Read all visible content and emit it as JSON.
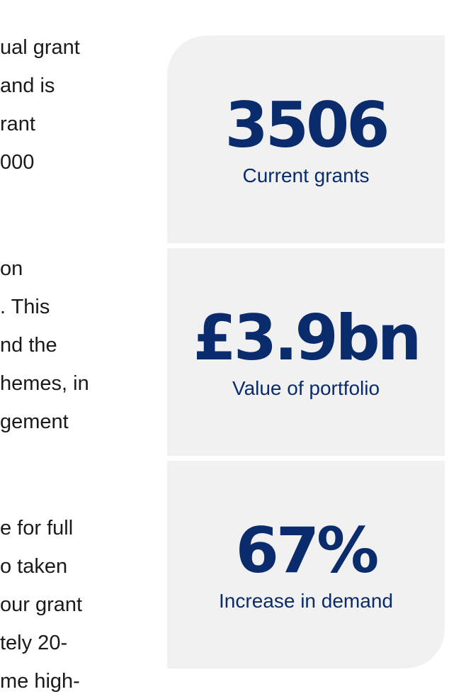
{
  "body_text": {
    "paragraph_1": [
      "ual grant",
      " and is",
      "rant",
      "000"
    ],
    "paragraph_2": [
      "on",
      ". This",
      "nd the",
      "hemes, in",
      "gement"
    ],
    "paragraph_3": [
      "e for full",
      "o taken",
      "our grant",
      "tely 20-",
      "me high-"
    ]
  },
  "stats": [
    {
      "value": "3506",
      "label": "Current grants"
    },
    {
      "value": "£3.9bn",
      "label": "Value of portfolio"
    },
    {
      "value": "67%",
      "label": "Increase in demand"
    }
  ],
  "colors": {
    "card_background": "#f1f1f2",
    "stat_text": "#0b2c6c",
    "body_text": "#1a1a1a"
  }
}
